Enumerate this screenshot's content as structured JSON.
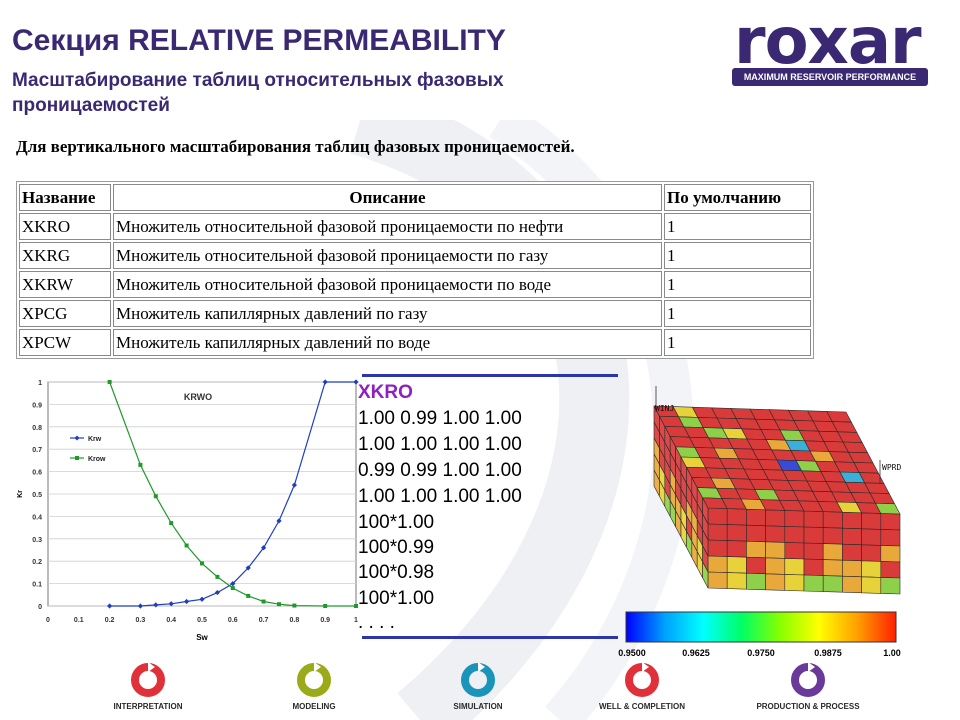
{
  "header": {
    "title": "Секция RELATIVE PERMEABILITY",
    "subtitle": "Масштабирование таблиц относительных фазовых проницаемостей"
  },
  "logo": {
    "word": "roxar",
    "tagline": "MAXIMUM RESERVOIR PERFORMANCE",
    "color": "#3a2873"
  },
  "intro": "Для вертикального масштабирования таблиц фазовых проницаемостей.",
  "table": {
    "headers": [
      "Название",
      "Описание",
      "По умолчанию"
    ],
    "rows": [
      [
        "XKRO",
        "Множитель относительной фазовой проницаемости по нефти",
        "1"
      ],
      [
        "XKRG",
        "Множитель относительной фазовой проницаемости по газу",
        "1"
      ],
      [
        "XKRW",
        "Множитель относительной фазовой проницаемости по воде",
        "1"
      ],
      [
        "XPCG",
        "Множитель капиллярных давлений по газу",
        "1"
      ],
      [
        "XPCW",
        "Множитель капиллярных давлений по воде",
        "1"
      ]
    ]
  },
  "chart_data": {
    "type": "line",
    "title": "KRWO",
    "xlabel": "Sw",
    "ylabel": "Kr",
    "xlim": [
      0,
      1
    ],
    "ylim": [
      0,
      1
    ],
    "x_ticks": [
      "0",
      "0.1",
      "0.2",
      "0.3",
      "0.4",
      "0.5",
      "0.6",
      "0.7",
      "0.8",
      "0.9",
      "1"
    ],
    "y_ticks": [
      "0",
      "0.1",
      "0.2",
      "0.3",
      "0.4",
      "0.5",
      "0.6",
      "0.7",
      "0.8",
      "0.9",
      "1"
    ],
    "grid": "horizontal",
    "legend": "left",
    "series": [
      {
        "name": "Krw",
        "color": "#1f3fbf",
        "x": [
          0.2,
          0.3,
          0.35,
          0.4,
          0.45,
          0.5,
          0.55,
          0.6,
          0.65,
          0.7,
          0.75,
          0.8,
          0.9,
          1.0
        ],
        "y": [
          0.0,
          0.0,
          0.005,
          0.01,
          0.02,
          0.03,
          0.06,
          0.1,
          0.17,
          0.26,
          0.38,
          0.54,
          1.0,
          1.0
        ]
      },
      {
        "name": "Krow",
        "color": "#1f9a2a",
        "x": [
          0.2,
          0.3,
          0.35,
          0.4,
          0.45,
          0.5,
          0.55,
          0.6,
          0.65,
          0.7,
          0.75,
          0.8,
          0.9,
          1.0
        ],
        "y": [
          1.0,
          0.63,
          0.49,
          0.37,
          0.27,
          0.19,
          0.13,
          0.08,
          0.045,
          0.02,
          0.008,
          0.002,
          0.0,
          0.0
        ]
      }
    ]
  },
  "keyword": {
    "name": "XKRO",
    "lines": [
      "1.00 0.99 1.00 1.00",
      "1.00 1.00 1.00 1.00",
      "0.99 0.99 1.00 1.00",
      "1.00 1.00 1.00 1.00",
      "100*1.00",
      "100*0.99",
      "100*0.98",
      "100*1.00",
      ". . . ."
    ]
  },
  "model": {
    "well_labels": [
      "WINJ",
      "WPRD"
    ],
    "cell_colors": [
      "#d93a3a",
      "#e05a3a",
      "#e8a83a",
      "#e8d23a",
      "#8fd04a",
      "#3ac870",
      "#3ab0d8",
      "#3a4ad8"
    ]
  },
  "color_scale": {
    "labels": [
      "0.9500",
      "0.9625",
      "0.9750",
      "0.9875",
      "1.00"
    ],
    "stops": [
      "#0000ff",
      "#00a0ff",
      "#00ffff",
      "#00ff66",
      "#88ff00",
      "#ffff00",
      "#ffa000",
      "#ff2000"
    ]
  },
  "footer": {
    "items": [
      {
        "label": "INTERPRETATION",
        "color": "#e0303a"
      },
      {
        "label": "MODELING",
        "color": "#9aaa18"
      },
      {
        "label": "SIMULATION",
        "color": "#1a94b8"
      },
      {
        "label": "WELL & COMPLETION",
        "color": "#e0303a"
      },
      {
        "label": "PRODUCTION & PROCESS",
        "color": "#6a3a9a"
      }
    ]
  }
}
